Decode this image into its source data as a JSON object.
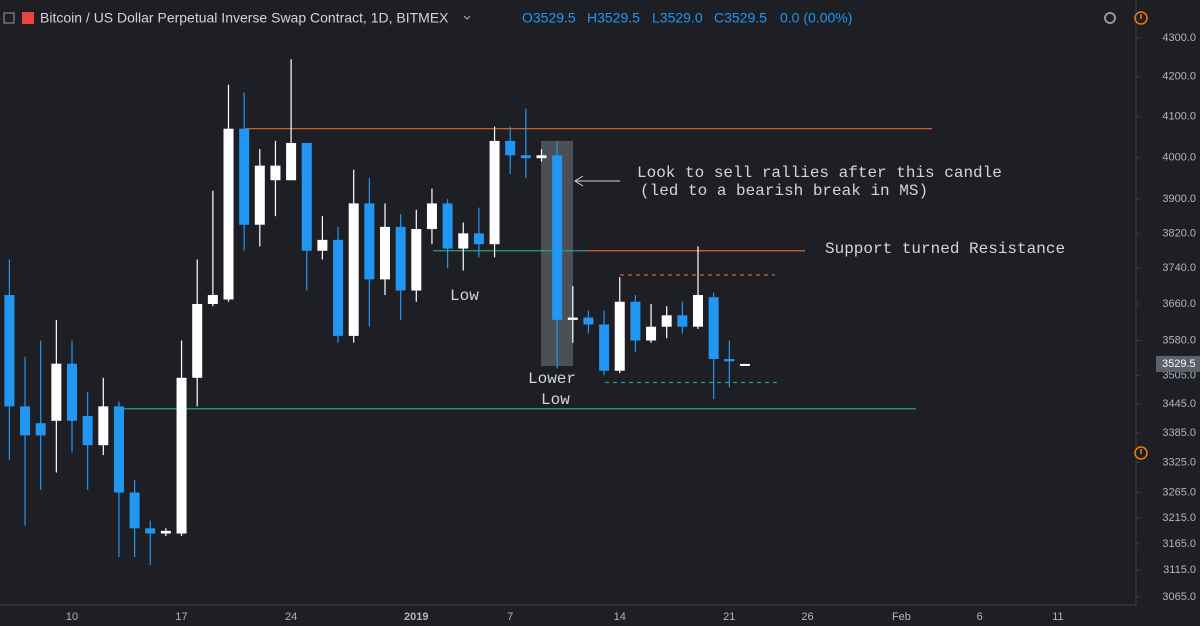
{
  "chart_data": {
    "type": "candlestick",
    "header": {
      "symbol": "Bitcoin / US Dollar Perpetual Inverse Swap Contract, 1D, BITMEX",
      "ohlc": [
        "O3529.5",
        "H3529.5",
        "L3529.0",
        "C3529.5",
        "0.0 (0.00%)"
      ]
    },
    "categories": [
      null,
      null,
      null,
      null,
      "10",
      null,
      null,
      null,
      null,
      null,
      null,
      "17",
      null,
      null,
      null,
      null,
      null,
      null,
      "24",
      null,
      null,
      null,
      null,
      null,
      null,
      null,
      "2019",
      null,
      null,
      null,
      null,
      null,
      "7",
      null,
      null,
      null,
      null,
      null,
      null,
      "14",
      null,
      null,
      null,
      null,
      null,
      null,
      "21",
      null,
      null,
      null,
      null,
      "26",
      null,
      null,
      null,
      null,
      null,
      "Feb",
      null,
      null,
      null,
      null,
      "6",
      null,
      null,
      null,
      null,
      "11",
      null,
      null,
      null,
      null
    ],
    "open": [
      3680,
      3440,
      3405,
      3410,
      3530,
      3420,
      3360,
      3440,
      3265,
      3195,
      3185,
      3185,
      3500,
      3660,
      3670,
      4070,
      3840,
      3945,
      3945,
      4035,
      3780,
      3805,
      3590,
      3890,
      3715,
      3835,
      3690,
      3830,
      3890,
      3785,
      3820,
      3795,
      4040,
      4005,
      3998,
      4005,
      3625,
      3630,
      3615,
      3515,
      3665,
      3580,
      3610,
      3635,
      3610,
      3675,
      3540,
      3529.5,
      null,
      null,
      null,
      null,
      null,
      null,
      null,
      null,
      null,
      null,
      null,
      null,
      null,
      null,
      null,
      null,
      null,
      null,
      null,
      null,
      null,
      null,
      null,
      null
    ],
    "high": [
      3760,
      3545,
      3580,
      3625,
      3580,
      3470,
      3500,
      3450,
      3290,
      3210,
      3195,
      3580,
      3760,
      3920,
      4180,
      4160,
      4020,
      4040,
      4245,
      4035,
      3860,
      3835,
      3970,
      3950,
      3890,
      3865,
      3875,
      3925,
      3900,
      3845,
      3880,
      4075,
      4075,
      4120,
      4020,
      4040,
      3700,
      3645,
      3645,
      3720,
      3680,
      3660,
      3655,
      3665,
      3790,
      3685,
      3580,
      3529.5,
      null,
      null,
      null,
      null,
      null,
      null,
      null,
      null,
      null,
      null,
      null,
      null,
      null,
      null,
      null,
      null,
      null,
      null,
      null,
      null,
      null,
      null,
      null,
      null
    ],
    "low": [
      3330,
      3200,
      3270,
      3305,
      3345,
      3270,
      3340,
      3140,
      3140,
      3125,
      3180,
      3180,
      3440,
      3655,
      3665,
      3780,
      3790,
      3860,
      3945,
      3690,
      3760,
      3575,
      3575,
      3610,
      3680,
      3625,
      3665,
      3795,
      3740,
      3735,
      3765,
      3765,
      3960,
      3950,
      3990,
      3520,
      3575,
      3595,
      3505,
      3510,
      3555,
      3575,
      3585,
      3595,
      3605,
      3455,
      3480,
      3529.0,
      null,
      null,
      null,
      null,
      null,
      null,
      null,
      null,
      null,
      null,
      null,
      null,
      null,
      null,
      null,
      null,
      null,
      null,
      null,
      null,
      null,
      null,
      null,
      null
    ],
    "close": [
      3440,
      3380,
      3380,
      3530,
      3410,
      3360,
      3440,
      3265,
      3195,
      3185,
      3190,
      3500,
      3660,
      3680,
      4070,
      3840,
      3980,
      3980,
      4035,
      3780,
      3805,
      3590,
      3890,
      3715,
      3835,
      3690,
      3830,
      3890,
      3785,
      3820,
      3795,
      4040,
      4005,
      3998,
      4005,
      3625,
      3630,
      3615,
      3515,
      3665,
      3580,
      3610,
      3635,
      3610,
      3680,
      3540,
      3535,
      3529.5,
      null,
      null,
      null,
      null,
      null,
      null,
      null,
      null,
      null,
      null,
      null,
      null,
      null,
      null,
      null,
      null,
      null,
      null,
      null,
      null,
      null,
      null,
      null,
      null
    ],
    "up_color": "#ffffff",
    "down_color": "#2196f3",
    "log_scale": true,
    "ylim": [
      3050,
      4400
    ],
    "yticks": [
      {
        "value": 4300,
        "label": "4300.0"
      },
      {
        "value": 4200,
        "label": "4200.0"
      },
      {
        "value": 4100,
        "label": "4100.0"
      },
      {
        "value": 4000,
        "label": "4000.0"
      },
      {
        "value": 3900,
        "label": "3900.0"
      },
      {
        "value": 3820,
        "label": "3820.0"
      },
      {
        "value": 3740,
        "label": "3740.0"
      },
      {
        "value": 3660,
        "label": "3660.0"
      },
      {
        "value": 3580,
        "label": "3580.0"
      },
      {
        "value": 3505,
        "label": "3505.0"
      },
      {
        "value": 3445,
        "label": "3445.0"
      },
      {
        "value": 3385,
        "label": "3385.0"
      },
      {
        "value": 3325,
        "label": "3325.0"
      },
      {
        "value": 3265,
        "label": "3265.0"
      },
      {
        "value": 3215,
        "label": "3215.0"
      },
      {
        "value": 3165,
        "label": "3165.0"
      },
      {
        "value": 3115,
        "label": "3115.0"
      },
      {
        "value": 3065,
        "label": "3065.0"
      }
    ],
    "last_price": 3529.5,
    "levels": [
      {
        "value": 4070,
        "color": "#e0662e"
      },
      {
        "value": 3780,
        "color": "#e0662e"
      },
      {
        "value": 3780,
        "color": "#26a17b"
      },
      {
        "value": 3725,
        "color": "#e0662e",
        "dashed": true
      },
      {
        "value": 3490,
        "color": "#26a17b",
        "dashed": true
      },
      {
        "value": 3435,
        "color": "#26a17b"
      }
    ],
    "highlight": {
      "top": 4040,
      "bottom": 3525
    },
    "annotations": [
      "Look to sell rallies after this candle",
      "(led to a bearish break in MS)",
      "Support turned Resistance",
      "Low",
      "Lower",
      "Low"
    ]
  }
}
